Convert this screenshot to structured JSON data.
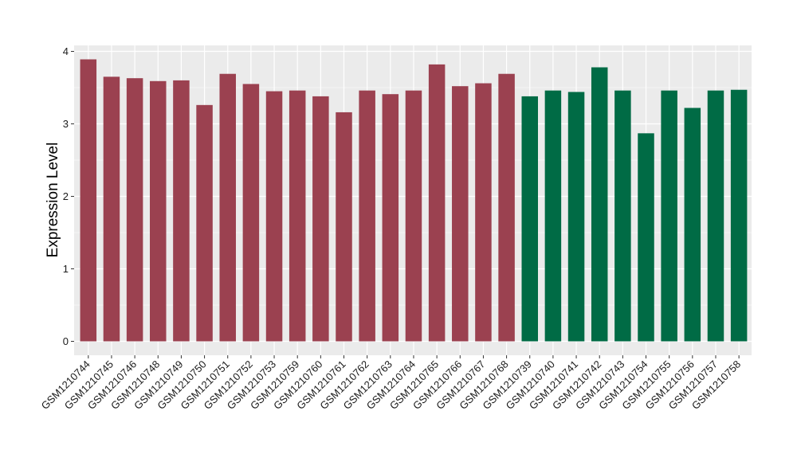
{
  "chart_data": {
    "type": "bar",
    "ylabel": "Expression Level",
    "xlabel": "",
    "ylim": [
      0,
      4.05
    ],
    "yticks": [
      0,
      1,
      2,
      3,
      4
    ],
    "grid": true,
    "legend": "none",
    "categories": [
      "GSM1210744",
      "GSM1210745",
      "GSM1210746",
      "GSM1210748",
      "GSM1210749",
      "GSM1210750",
      "GSM1210751",
      "GSM1210752",
      "GSM1210753",
      "GSM1210759",
      "GSM1210760",
      "GSM1210761",
      "GSM1210762",
      "GSM1210763",
      "GSM1210764",
      "GSM1210765",
      "GSM1210766",
      "GSM1210767",
      "GSM1210768",
      "GSM1210739",
      "GSM1210740",
      "GSM1210741",
      "GSM1210742",
      "GSM1210743",
      "GSM1210754",
      "GSM1210755",
      "GSM1210756",
      "GSM1210757",
      "GSM1210758"
    ],
    "values": [
      3.89,
      3.65,
      3.63,
      3.59,
      3.6,
      3.26,
      3.69,
      3.55,
      3.45,
      3.46,
      3.38,
      3.16,
      3.46,
      3.41,
      3.46,
      3.82,
      3.52,
      3.56,
      3.69,
      3.38,
      3.46,
      3.44,
      3.78,
      3.46,
      2.87,
      3.46,
      3.22,
      3.46,
      3.47
    ],
    "groups": [
      0,
      0,
      0,
      0,
      0,
      0,
      0,
      0,
      0,
      0,
      0,
      0,
      0,
      0,
      0,
      0,
      0,
      0,
      0,
      1,
      1,
      1,
      1,
      1,
      1,
      1,
      1,
      1,
      1
    ],
    "colors": [
      "#9B4150",
      "#006B45"
    ],
    "panel_background": "#EBEBEB",
    "grid_color": "#FFFFFF"
  }
}
